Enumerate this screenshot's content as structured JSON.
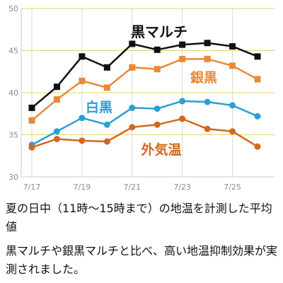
{
  "chart_data": {
    "type": "line",
    "title": "",
    "xlabel": "",
    "ylabel": "",
    "ylim": [
      30,
      50
    ],
    "yticks": [
      30,
      35,
      40,
      45,
      50
    ],
    "grid": true,
    "legend": "inline-labels",
    "categories": [
      "7/17",
      "7/18",
      "7/19",
      "7/20",
      "7/21",
      "7/22",
      "7/23",
      "7/24",
      "7/25",
      "7/26"
    ],
    "xtick_labels": [
      "7/17",
      "7/19",
      "7/21",
      "7/23",
      "7/25"
    ],
    "series": [
      {
        "name": "黒マルチ",
        "color": "#111111",
        "marker": "square",
        "values": [
          38.2,
          40.7,
          44.3,
          43.0,
          45.8,
          45.1,
          45.7,
          45.9,
          45.5,
          44.3
        ]
      },
      {
        "name": "銀黒",
        "color": "#e8893a",
        "marker": "square",
        "values": [
          36.7,
          39.2,
          41.4,
          40.6,
          43.0,
          42.8,
          44.0,
          44.0,
          43.2,
          41.6
        ]
      },
      {
        "name": "白黒",
        "color": "#2b9fd6",
        "marker": "circle",
        "values": [
          33.8,
          35.4,
          37.0,
          36.2,
          38.2,
          38.1,
          39.0,
          38.9,
          38.5,
          37.2
        ]
      },
      {
        "name": "外気温",
        "color": "#d4661e",
        "marker": "circle",
        "values": [
          33.5,
          34.5,
          34.3,
          34.2,
          35.9,
          36.2,
          36.9,
          35.7,
          35.4,
          33.6
        ]
      }
    ]
  },
  "caption": {
    "line1": "夏の日中（11時〜15時まで）の地温を計測した平均値",
    "line2": "黒マルチや銀黒マルチと比べ、高い地温抑制効果が実測されました。"
  }
}
